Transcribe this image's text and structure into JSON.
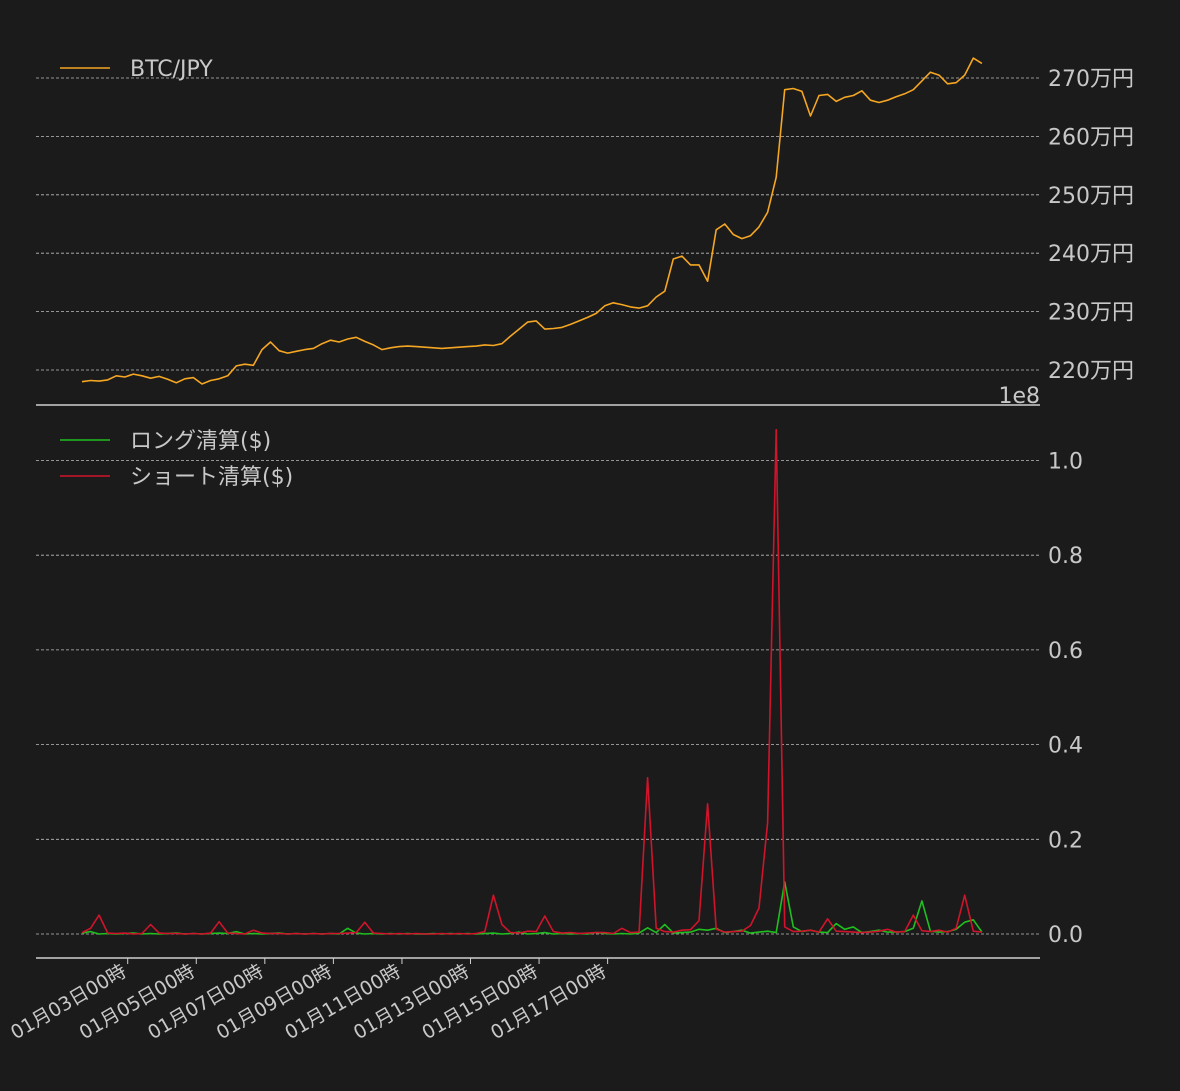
{
  "chart_data": [
    {
      "type": "line",
      "title": "",
      "ylabel": "",
      "ylim": [
        2155,
        2750
      ],
      "yticks": [
        2200,
        2300,
        2400,
        2500,
        2600,
        2700
      ],
      "ytick_labels": [
        "220万円",
        "230万円",
        "240万円",
        "250万円",
        "260万円",
        "270万円"
      ],
      "grid": true,
      "legend_position": "top-left",
      "x_start": "01月01日16時",
      "x_step_hours": 6,
      "series": [
        {
          "name": "BTC/JPY",
          "color": "#f5a623",
          "values": [
            2180,
            2182,
            2181,
            2183,
            2190,
            2188,
            2193,
            2190,
            2186,
            2189,
            2184,
            2178,
            2185,
            2187,
            2176,
            2182,
            2185,
            2190,
            2207,
            2210,
            2208,
            2235,
            2248,
            2233,
            2229,
            2232,
            2235,
            2237,
            2245,
            2251,
            2248,
            2253,
            2256,
            2249,
            2243,
            2235,
            2238,
            2240,
            2241,
            2240,
            2239,
            2238,
            2237,
            2238,
            2239,
            2240,
            2241,
            2243,
            2242,
            2245,
            2258,
            2270,
            2282,
            2284,
            2270,
            2271,
            2273,
            2278,
            2284,
            2290,
            2297,
            2310,
            2315,
            2312,
            2308,
            2306,
            2310,
            2325,
            2335,
            2390,
            2395,
            2380,
            2380,
            2352,
            2440,
            2450,
            2432,
            2425,
            2430,
            2445,
            2470,
            2530,
            2680,
            2682,
            2677,
            2635,
            2670,
            2672,
            2660,
            2667,
            2670,
            2678,
            2662,
            2658,
            2662,
            2668,
            2673,
            2680,
            2695,
            2710,
            2705,
            2690,
            2692,
            2705,
            2734,
            2725
          ]
        }
      ]
    },
    {
      "type": "line",
      "title": "",
      "ylabel": "",
      "scale_label": "1e8",
      "ylim": [
        -0.05,
        1.1
      ],
      "yticks": [
        0.0,
        0.2,
        0.4,
        0.6,
        0.8,
        1.0
      ],
      "ytick_labels": [
        "0.0",
        "0.2",
        "0.4",
        "0.6",
        "0.8",
        "1.0"
      ],
      "grid": true,
      "legend_position": "top-left",
      "x_start": "01月01日16時",
      "x_step_hours": 6,
      "xticks": [
        "01月03日00時",
        "01月05日00時",
        "01月07日00時",
        "01月09日00時",
        "01月11日00時",
        "01月13日00時",
        "01月15日00時",
        "01月17日00時"
      ],
      "xticks_hours_from_start": [
        32,
        80,
        128,
        176,
        224,
        272,
        320,
        368
      ],
      "series": [
        {
          "name": "ロング清算($)",
          "color": "#1fbf1f",
          "values": [
            0.002,
            0.005,
            0.0,
            0.001,
            0.0,
            0.001,
            0.002,
            0.0,
            0.001,
            0.0,
            0.001,
            0.002,
            0.0,
            0.001,
            0.0,
            0.001,
            0.002,
            0.001,
            0.005,
            0.0,
            0.001,
            0.0,
            0.001,
            0.002,
            0.0,
            0.001,
            0.0,
            0.001,
            0.0,
            0.001,
            0.0,
            0.012,
            0.002,
            0.0,
            0.001,
            0.0,
            0.001,
            0.0,
            0.001,
            0.0,
            0.0,
            0.001,
            0.0,
            0.001,
            0.0,
            0.001,
            0.0,
            0.001,
            0.002,
            0.0,
            0.001,
            0.004,
            0.0,
            0.001,
            0.003,
            0.0,
            0.001,
            0.0,
            0.001,
            0.0,
            0.003,
            0.001,
            0.0,
            0.001,
            0.0,
            0.002,
            0.013,
            0.003,
            0.02,
            0.002,
            0.003,
            0.004,
            0.01,
            0.008,
            0.012,
            0.003,
            0.005,
            0.008,
            0.002,
            0.004,
            0.006,
            0.003,
            0.11,
            0.015,
            0.005,
            0.008,
            0.004,
            0.003,
            0.022,
            0.01,
            0.015,
            0.003,
            0.005,
            0.008,
            0.004,
            0.004,
            0.005,
            0.012,
            0.07,
            0.006,
            0.004,
            0.005,
            0.01,
            0.025,
            0.03,
            0.004
          ]
        },
        {
          "name": "ショート清算($)",
          "color": "#d0142c",
          "values": [
            0.003,
            0.012,
            0.04,
            0.002,
            0.001,
            0.002,
            0.0,
            0.001,
            0.02,
            0.002,
            0.001,
            0.001,
            0.0,
            0.001,
            0.0,
            0.002,
            0.026,
            0.002,
            0.001,
            0.0,
            0.008,
            0.002,
            0.001,
            0.001,
            0.0,
            0.001,
            0.0,
            0.001,
            0.0,
            0.001,
            0.001,
            0.002,
            0.003,
            0.025,
            0.002,
            0.001,
            0.0,
            0.001,
            0.0,
            0.001,
            0.0,
            0.0,
            0.001,
            0.0,
            0.001,
            0.0,
            0.001,
            0.005,
            0.082,
            0.02,
            0.003,
            0.002,
            0.006,
            0.005,
            0.038,
            0.005,
            0.002,
            0.003,
            0.001,
            0.002,
            0.003,
            0.003,
            0.001,
            0.012,
            0.003,
            0.004,
            0.33,
            0.012,
            0.005,
            0.004,
            0.008,
            0.009,
            0.028,
            0.275,
            0.01,
            0.004,
            0.005,
            0.006,
            0.018,
            0.055,
            0.235,
            1.065,
            0.015,
            0.005,
            0.006,
            0.008,
            0.004,
            0.032,
            0.006,
            0.005,
            0.004,
            0.003,
            0.004,
            0.006,
            0.01,
            0.004,
            0.005,
            0.04,
            0.007,
            0.005,
            0.008,
            0.004,
            0.012,
            0.082,
            0.006,
            0.004
          ]
        }
      ]
    }
  ]
}
